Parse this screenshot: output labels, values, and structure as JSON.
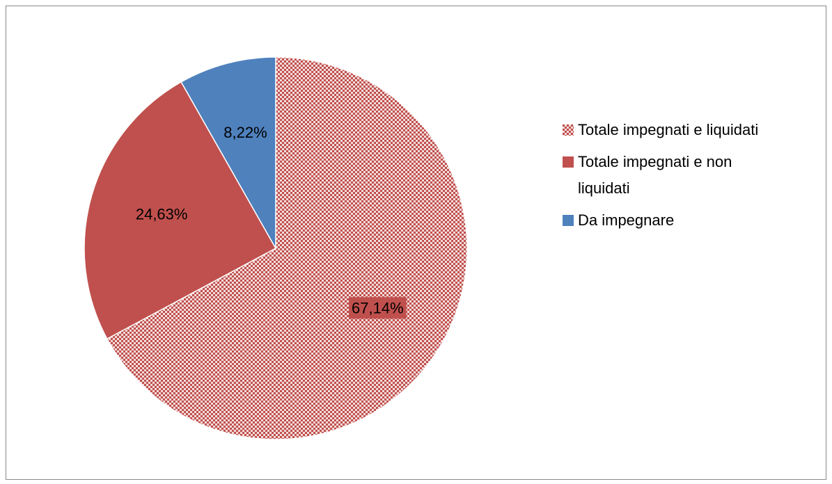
{
  "chart_data": {
    "type": "pie",
    "categories": [
      "Totale impegnati e liquidati",
      "Totale impegnati e non liquidati",
      "Da impegnare"
    ],
    "values": [
      67.14,
      24.63,
      8.22
    ],
    "value_labels": [
      "67,14%",
      "24,63%",
      "8,22%"
    ],
    "colors": [
      "#c0504d",
      "#c0504d",
      "#4f81bd"
    ],
    "patterns": [
      "checker",
      "solid",
      "solid"
    ],
    "legend": "right"
  }
}
